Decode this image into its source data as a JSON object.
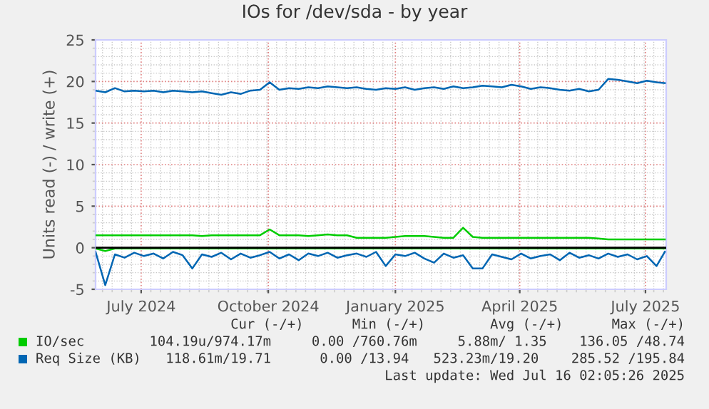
{
  "chart_data": {
    "type": "line",
    "title": "IOs for /dev/sda - by year",
    "ylabel": "Units read (-) / write (+)",
    "x": [
      "2024-05-29",
      "2024-06-05",
      "2024-06-12",
      "2024-06-19",
      "2024-06-26",
      "2024-07-03",
      "2024-07-10",
      "2024-07-17",
      "2024-07-24",
      "2024-07-31",
      "2024-08-07",
      "2024-08-14",
      "2024-08-21",
      "2024-08-28",
      "2024-09-04",
      "2024-09-11",
      "2024-09-18",
      "2024-09-25",
      "2024-10-02",
      "2024-10-09",
      "2024-10-16",
      "2024-10-23",
      "2024-10-30",
      "2024-11-06",
      "2024-11-13",
      "2024-11-20",
      "2024-11-27",
      "2024-12-04",
      "2024-12-11",
      "2024-12-18",
      "2024-12-25",
      "2025-01-01",
      "2025-01-08",
      "2025-01-15",
      "2025-01-22",
      "2025-01-29",
      "2025-02-05",
      "2025-02-12",
      "2025-02-19",
      "2025-02-26",
      "2025-03-05",
      "2025-03-12",
      "2025-03-19",
      "2025-03-26",
      "2025-04-02",
      "2025-04-09",
      "2025-04-16",
      "2025-04-23",
      "2025-04-30",
      "2025-05-07",
      "2025-05-14",
      "2025-05-21",
      "2025-05-28",
      "2025-06-04",
      "2025-06-11",
      "2025-06-18",
      "2025-06-25",
      "2025-07-02",
      "2025-07-09",
      "2025-07-15"
    ],
    "series": [
      {
        "name": "IO/sec",
        "color": "#00cc00",
        "values": [
          1.5,
          1.5,
          1.5,
          1.5,
          1.5,
          1.5,
          1.5,
          1.5,
          1.5,
          1.5,
          1.5,
          1.4,
          1.5,
          1.5,
          1.5,
          1.5,
          1.5,
          1.5,
          2.2,
          1.5,
          1.5,
          1.5,
          1.4,
          1.5,
          1.6,
          1.5,
          1.5,
          1.2,
          1.2,
          1.2,
          1.2,
          1.3,
          1.4,
          1.4,
          1.4,
          1.3,
          1.2,
          1.2,
          2.4,
          1.3,
          1.2,
          1.2,
          1.2,
          1.2,
          1.2,
          1.2,
          1.2,
          1.2,
          1.2,
          1.2,
          1.2,
          1.2,
          1.1,
          1.0,
          1.0,
          1.0,
          1.0,
          1.0,
          1.0,
          1.0
        ]
      },
      {
        "name": "Req Size (KB)",
        "color": "#0066b3",
        "values": [
          18.9,
          18.7,
          19.2,
          18.8,
          18.9,
          18.8,
          18.9,
          18.7,
          18.9,
          18.8,
          18.7,
          18.8,
          18.6,
          18.4,
          18.7,
          18.5,
          18.9,
          19.0,
          19.9,
          19.0,
          19.2,
          19.1,
          19.3,
          19.2,
          19.4,
          19.3,
          19.2,
          19.3,
          19.1,
          19.0,
          19.2,
          19.1,
          19.3,
          19.0,
          19.2,
          19.3,
          19.1,
          19.4,
          19.2,
          19.3,
          19.5,
          19.4,
          19.3,
          19.6,
          19.4,
          19.1,
          19.3,
          19.2,
          19.0,
          18.9,
          19.1,
          18.8,
          19.0,
          20.3,
          20.2,
          20.0,
          19.8,
          20.1,
          19.9,
          19.8
        ]
      },
      {
        "color": "#00cc00",
        "values": [
          -0.1,
          -0.4,
          -0.1,
          -0.1,
          -0.1,
          -0.1,
          -0.1,
          -0.1,
          -0.1,
          -0.1,
          -0.1,
          -0.1,
          -0.1,
          -0.1,
          -0.1,
          -0.1,
          -0.1,
          -0.1,
          -0.1,
          -0.1,
          -0.1,
          -0.1,
          -0.1,
          -0.1,
          -0.1,
          -0.1,
          -0.1,
          -0.1,
          -0.1,
          -0.1,
          -0.1,
          -0.1,
          -0.1,
          -0.1,
          -0.1,
          -0.1,
          -0.1,
          -0.1,
          -0.1,
          -0.1,
          -0.1,
          -0.1,
          -0.1,
          -0.1,
          -0.1,
          -0.1,
          -0.1,
          -0.1,
          -0.1,
          -0.1,
          -0.1,
          -0.1,
          -0.1,
          -0.1,
          -0.1,
          -0.1,
          -0.1,
          -0.1,
          -0.1,
          -0.1
        ]
      },
      {
        "color": "#0066b3",
        "values": [
          -0.5,
          -4.5,
          -0.8,
          -1.2,
          -0.6,
          -1.0,
          -0.7,
          -1.3,
          -0.5,
          -0.9,
          -2.5,
          -0.8,
          -1.1,
          -0.6,
          -1.4,
          -0.7,
          -1.2,
          -0.9,
          -0.5,
          -1.3,
          -0.8,
          -1.5,
          -0.7,
          -1.0,
          -0.6,
          -1.2,
          -0.9,
          -0.7,
          -1.1,
          -0.5,
          -2.2,
          -0.8,
          -1.0,
          -0.6,
          -1.3,
          -1.8,
          -0.7,
          -1.2,
          -0.9,
          -2.5,
          -2.5,
          -0.8,
          -1.1,
          -1.4,
          -0.7,
          -1.3,
          -1.0,
          -0.8,
          -1.5,
          -0.6,
          -1.2,
          -0.9,
          -1.3,
          -0.7,
          -1.1,
          -0.8,
          -1.4,
          -1.0,
          -2.2,
          -0.5
        ]
      }
    ],
    "xlim": [
      "2024-05-29",
      "2025-07-16"
    ],
    "xticks": [
      {
        "value": "2024-07-01",
        "label": "July 2024"
      },
      {
        "value": "2024-10-01",
        "label": "October 2024"
      },
      {
        "value": "2025-01-01",
        "label": "January 2025"
      },
      {
        "value": "2025-04-01",
        "label": "April 2025"
      },
      {
        "value": "2025-07-01",
        "label": "July 2025"
      }
    ],
    "ylim": [
      -5,
      25
    ],
    "yticks": [
      -5,
      0,
      5,
      10,
      15,
      20,
      25
    ],
    "ref_lines": [
      {
        "axis": "y",
        "value": 0,
        "color": "#000000"
      }
    ],
    "grid": true,
    "legend": "bottom",
    "marker": "none",
    "line_style": "solid",
    "annotations": [
      "Cur (-/+)      Min (-/+)        Avg (-/+)      Max (-/+)",
      "104.19u/974.17m     0.00 /760.76m     5.88m/ 1.35    136.05 /48.74",
      "118.61m/19.71      0.00 /13.94   523.23m/19.20    285.52 /195.84",
      "Last update: Wed Jul 16 02:05:26 2025"
    ]
  }
}
